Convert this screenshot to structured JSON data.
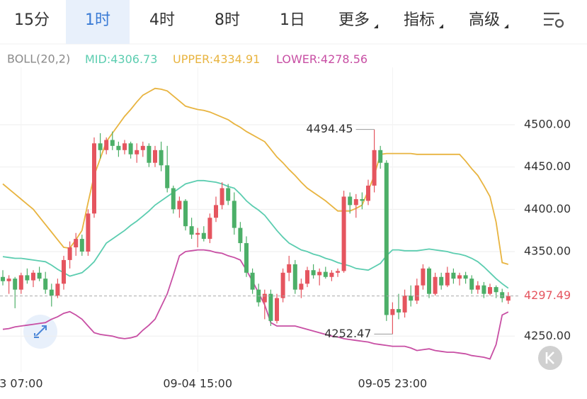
{
  "tabs": [
    "15分",
    "1时",
    "4时",
    "8时",
    "1日",
    "更多",
    "指标",
    "高级"
  ],
  "selected_tab": 1,
  "chart_data": {
    "type": "candlestick",
    "indicator": "BOLL(20,2)",
    "label_separator": ":",
    "ylim": [
      4207.5,
      4567.9
    ],
    "yticks": [
      {
        "value": 4250,
        "label": "4250.00"
      },
      {
        "value": 4350,
        "label": "4350.00"
      },
      {
        "value": 4400,
        "label": "4400.00"
      },
      {
        "value": 4450,
        "label": "4450.00"
      },
      {
        "value": 4500,
        "label": "4500.00"
      }
    ],
    "xticks": [
      {
        "value": 3,
        "label": "3 07:00"
      },
      {
        "value": 32,
        "label": "09-04 15:00"
      },
      {
        "value": 64,
        "label": "09-05 23:00"
      }
    ],
    "grid": true,
    "up_color": "#e5555f",
    "down_color": "#4caf68",
    "high_marker_index": 61,
    "low_marker_index": 64,
    "candles": [
      [
        4320,
        4328,
        4310,
        4315
      ],
      [
        4315,
        4322,
        4300,
        4318
      ],
      [
        4318,
        4320,
        4283,
        4305
      ],
      [
        4305,
        4325,
        4300,
        4322
      ],
      [
        4322,
        4330,
        4312,
        4316
      ],
      [
        4316,
        4328,
        4308,
        4325
      ],
      [
        4325,
        4332,
        4315,
        4318
      ],
      [
        4318,
        4326,
        4300,
        4305
      ],
      [
        4305,
        4312,
        4285,
        4298
      ],
      [
        4298,
        4318,
        4295,
        4312
      ],
      [
        4312,
        4345,
        4305,
        4340
      ],
      [
        4340,
        4362,
        4330,
        4355
      ],
      [
        4355,
        4372,
        4345,
        4365
      ],
      [
        4365,
        4370,
        4345,
        4350
      ],
      [
        4350,
        4400,
        4345,
        4395
      ],
      [
        4395,
        4485,
        4390,
        4478
      ],
      [
        4478,
        4490,
        4460,
        4470
      ],
      [
        4470,
        4485,
        4465,
        4482
      ],
      [
        4482,
        4492,
        4470,
        4475
      ],
      [
        4475,
        4480,
        4462,
        4470
      ],
      [
        4470,
        4482,
        4465,
        4478
      ],
      [
        4478,
        4480,
        4460,
        4465
      ],
      [
        4465,
        4478,
        4455,
        4470
      ],
      [
        4470,
        4480,
        4462,
        4475
      ],
      [
        4475,
        4478,
        4450,
        4455
      ],
      [
        4455,
        4475,
        4450,
        4470
      ],
      [
        4470,
        4480,
        4445,
        4452
      ],
      [
        4452,
        4475,
        4420,
        4425
      ],
      [
        4425,
        4428,
        4395,
        4400
      ],
      [
        4400,
        4415,
        4390,
        4410
      ],
      [
        4410,
        4412,
        4375,
        4380
      ],
      [
        4380,
        4390,
        4365,
        4370
      ],
      [
        4370,
        4378,
        4355,
        4372
      ],
      [
        4372,
        4380,
        4362,
        4365
      ],
      [
        4365,
        4395,
        4360,
        4390
      ],
      [
        4390,
        4415,
        4385,
        4405
      ],
      [
        4405,
        4432,
        4400,
        4425
      ],
      [
        4425,
        4430,
        4405,
        4410
      ],
      [
        4410,
        4420,
        4370,
        4378
      ],
      [
        4378,
        4385,
        4350,
        4360
      ],
      [
        4360,
        4368,
        4320,
        4325
      ],
      [
        4325,
        4330,
        4300,
        4305
      ],
      [
        4305,
        4312,
        4285,
        4290
      ],
      [
        4290,
        4305,
        4270,
        4300
      ],
      [
        4300,
        4305,
        4262,
        4268
      ],
      [
        4268,
        4300,
        4265,
        4295
      ],
      [
        4295,
        4330,
        4290,
        4325
      ],
      [
        4325,
        4345,
        4315,
        4335
      ],
      [
        4335,
        4340,
        4300,
        4305
      ],
      [
        4305,
        4318,
        4295,
        4312
      ],
      [
        4312,
        4332,
        4308,
        4328
      ],
      [
        4328,
        4335,
        4318,
        4322
      ],
      [
        4322,
        4330,
        4310,
        4326
      ],
      [
        4326,
        4332,
        4318,
        4320
      ],
      [
        4320,
        4328,
        4315,
        4325
      ],
      [
        4325,
        4330,
        4320,
        4327
      ],
      [
        4327,
        4422,
        4325,
        4415
      ],
      [
        4415,
        4420,
        4395,
        4405
      ],
      [
        4405,
        4418,
        4390,
        4412
      ],
      [
        4412,
        4420,
        4400,
        4410
      ],
      [
        4410,
        4435,
        4405,
        4428
      ],
      [
        4428,
        4494.45,
        4420,
        4470
      ],
      [
        4470,
        4475,
        4448,
        4455
      ],
      [
        4455,
        4458,
        4268,
        4275
      ],
      [
        4275,
        4290,
        4252.47,
        4282
      ],
      [
        4282,
        4300,
        4270,
        4278
      ],
      [
        4278,
        4305,
        4272,
        4298
      ],
      [
        4298,
        4310,
        4285,
        4292
      ],
      [
        4292,
        4318,
        4288,
        4310
      ],
      [
        4310,
        4335,
        4305,
        4330
      ],
      [
        4330,
        4332,
        4295,
        4300
      ],
      [
        4300,
        4325,
        4298,
        4320
      ],
      [
        4320,
        4325,
        4305,
        4310
      ],
      [
        4310,
        4332,
        4308,
        4325
      ],
      [
        4325,
        4330,
        4312,
        4318
      ],
      [
        4318,
        4325,
        4310,
        4322
      ],
      [
        4322,
        4326,
        4312,
        4318
      ],
      [
        4318,
        4322,
        4300,
        4305
      ],
      [
        4305,
        4315,
        4300,
        4310
      ],
      [
        4310,
        4314,
        4295,
        4300
      ],
      [
        4300,
        4312,
        4298,
        4308
      ],
      [
        4308,
        4310,
        4295,
        4302
      ],
      [
        4302,
        4306,
        4290,
        4295
      ],
      [
        4292,
        4302,
        4288,
        4297.49
      ]
    ],
    "series": [
      {
        "name": "MID",
        "color": "#5ccdb0",
        "values": [
          4344,
          4343,
          4342,
          4342,
          4341,
          4340,
          4339,
          4338,
          4334,
          4329,
          4325,
          4321,
          4323,
          4325,
          4331,
          4338,
          4349,
          4360,
          4365,
          4370,
          4375,
          4381,
          4386,
          4392,
          4398,
          4405,
          4410,
          4415,
          4420,
          4425,
          4430,
          4432,
          4434,
          4434,
          4433,
          4432,
          4430,
          4427,
          4425,
          4418,
          4410,
          4404,
          4399,
          4393,
          4384,
          4375,
          4367,
          4360,
          4356,
          4352,
          4350,
          4347,
          4345,
          4342,
          4340,
          4337,
          4335,
          4333,
          4330,
          4329,
          4328,
          4332,
          4336,
          4345,
          4352,
          4352,
          4351,
          4351,
          4351,
          4352,
          4353,
          4352,
          4351,
          4350,
          4348,
          4347,
          4345,
          4342,
          4338,
          4332,
          4325,
          4318,
          4312,
          4306.73
        ]
      },
      {
        "name": "UPPER",
        "color": "#e8b440",
        "values": [
          4430,
          4424,
          4418,
          4412,
          4406,
          4400,
          4391,
          4382,
          4373,
          4364,
          4355,
          4354,
          4364,
          4375,
          4408,
          4440,
          4460,
          4480,
          4490,
          4500,
          4510,
          4518,
          4527,
          4535,
          4539,
          4543,
          4542,
          4540,
          4534,
          4528,
          4522,
          4520,
          4518,
          4517,
          4515,
          4512,
          4509,
          4506,
          4501,
          4497,
          4492,
          4488,
          4484,
          4480,
          4471,
          4462,
          4455,
          4447,
          4440,
          4432,
          4425,
          4420,
          4415,
          4410,
          4404,
          4398,
          4398,
          4398,
          4401,
          4405,
          4422,
          4440,
          4465,
          4466,
          4466,
          4466,
          4466,
          4466,
          4465,
          4465,
          4465,
          4465,
          4465,
          4465,
          4465,
          4465,
          4457,
          4448,
          4440,
          4428,
          4415,
          4385,
          4337,
          4334.91
        ]
      },
      {
        "name": "LOWER",
        "color": "#c84fa4",
        "values": [
          4258,
          4259,
          4261,
          4262,
          4263,
          4264,
          4265,
          4266,
          4270,
          4273,
          4277,
          4279,
          4275,
          4270,
          4262,
          4254,
          4252,
          4251,
          4250,
          4248,
          4247,
          4248,
          4250,
          4257,
          4263,
          4270,
          4285,
          4300,
          4322,
          4345,
          4350,
          4351,
          4352,
          4352,
          4351,
          4349,
          4348,
          4345,
          4343,
          4340,
          4328,
          4315,
          4301,
          4287,
          4266,
          4262,
          4262,
          4262,
          4262,
          4260,
          4258,
          4256,
          4254,
          4252,
          4250,
          4249,
          4247,
          4246,
          4245,
          4244,
          4243,
          4241,
          4240,
          4239,
          4238,
          4238,
          4238,
          4236,
          4233,
          4234,
          4235,
          4233,
          4232,
          4231,
          4231,
          4230,
          4229,
          4227,
          4226,
          4225,
          4223,
          4240,
          4275,
          4278.56
        ]
      }
    ]
  }
}
